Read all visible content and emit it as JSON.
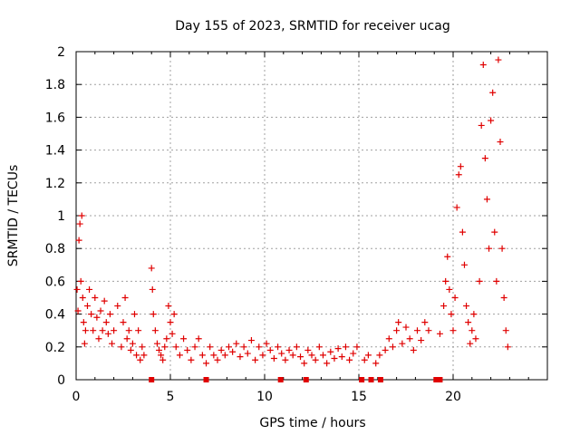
{
  "chart_data": {
    "type": "scatter",
    "title": "Day 155 of 2023, SRMTID for receiver ucag",
    "xlabel": "GPS time / hours",
    "ylabel": "SRMTID / TECUs",
    "xlim": [
      0,
      25
    ],
    "ylim": [
      0,
      2
    ],
    "xticks": [
      0,
      5,
      10,
      15,
      20
    ],
    "xtick_labels": [
      "0",
      "5",
      "10",
      "15",
      "20"
    ],
    "yticks": [
      0,
      0.2,
      0.4,
      0.6,
      0.8,
      1,
      1.2,
      1.4,
      1.6,
      1.8,
      2
    ],
    "ytick_labels": [
      "0",
      "0.2",
      "0.4",
      "0.6",
      "0.8",
      "1",
      "1.2",
      "1.4",
      "1.6",
      "1.8",
      "2"
    ],
    "grid": true,
    "marker": "plus",
    "color": "#e00000",
    "series": [
      {
        "name": "SRMTID",
        "points": [
          [
            0.05,
            0.55
          ],
          [
            0.1,
            0.42
          ],
          [
            0.15,
            0.85
          ],
          [
            0.2,
            0.95
          ],
          [
            0.25,
            0.6
          ],
          [
            0.3,
            1.0
          ],
          [
            0.35,
            0.5
          ],
          [
            0.4,
            0.35
          ],
          [
            0.45,
            0.22
          ],
          [
            0.5,
            0.3
          ],
          [
            0.6,
            0.45
          ],
          [
            0.7,
            0.55
          ],
          [
            0.8,
            0.4
          ],
          [
            0.9,
            0.3
          ],
          [
            1.0,
            0.5
          ],
          [
            1.1,
            0.38
          ],
          [
            1.2,
            0.25
          ],
          [
            1.3,
            0.42
          ],
          [
            1.4,
            0.3
          ],
          [
            1.5,
            0.48
          ],
          [
            1.6,
            0.35
          ],
          [
            1.7,
            0.28
          ],
          [
            1.8,
            0.4
          ],
          [
            1.9,
            0.22
          ],
          [
            2.0,
            0.3
          ],
          [
            2.2,
            0.45
          ],
          [
            2.4,
            0.2
          ],
          [
            2.5,
            0.35
          ],
          [
            2.6,
            0.5
          ],
          [
            2.7,
            0.25
          ],
          [
            2.8,
            0.3
          ],
          [
            2.9,
            0.18
          ],
          [
            3.0,
            0.22
          ],
          [
            3.1,
            0.4
          ],
          [
            3.2,
            0.15
          ],
          [
            3.3,
            0.3
          ],
          [
            3.4,
            0.12
          ],
          [
            3.5,
            0.2
          ],
          [
            3.6,
            0.15
          ],
          [
            4.0,
            0.68
          ],
          [
            4.05,
            0.55
          ],
          [
            4.1,
            0.4
          ],
          [
            4.2,
            0.3
          ],
          [
            4.3,
            0.22
          ],
          [
            4.4,
            0.18
          ],
          [
            4.5,
            0.15
          ],
          [
            4.6,
            0.12
          ],
          [
            4.7,
            0.2
          ],
          [
            4.8,
            0.25
          ],
          [
            4.9,
            0.45
          ],
          [
            5.0,
            0.35
          ],
          [
            5.1,
            0.28
          ],
          [
            5.2,
            0.4
          ],
          [
            5.3,
            0.2
          ],
          [
            5.5,
            0.15
          ],
          [
            5.7,
            0.25
          ],
          [
            5.9,
            0.18
          ],
          [
            6.1,
            0.12
          ],
          [
            6.3,
            0.2
          ],
          [
            6.5,
            0.25
          ],
          [
            6.7,
            0.15
          ],
          [
            6.9,
            0.1
          ],
          [
            7.1,
            0.2
          ],
          [
            7.3,
            0.15
          ],
          [
            7.5,
            0.12
          ],
          [
            7.7,
            0.18
          ],
          [
            7.9,
            0.15
          ],
          [
            8.1,
            0.2
          ],
          [
            8.3,
            0.17
          ],
          [
            8.5,
            0.22
          ],
          [
            8.7,
            0.14
          ],
          [
            8.9,
            0.2
          ],
          [
            9.1,
            0.16
          ],
          [
            9.3,
            0.24
          ],
          [
            9.5,
            0.12
          ],
          [
            9.7,
            0.2
          ],
          [
            9.9,
            0.15
          ],
          [
            10.1,
            0.22
          ],
          [
            10.3,
            0.18
          ],
          [
            10.5,
            0.13
          ],
          [
            10.7,
            0.2
          ],
          [
            10.9,
            0.16
          ],
          [
            11.1,
            0.12
          ],
          [
            11.3,
            0.18
          ],
          [
            11.5,
            0.15
          ],
          [
            11.7,
            0.2
          ],
          [
            11.9,
            0.14
          ],
          [
            12.1,
            0.1
          ],
          [
            12.3,
            0.18
          ],
          [
            12.5,
            0.15
          ],
          [
            12.7,
            0.12
          ],
          [
            12.9,
            0.2
          ],
          [
            13.1,
            0.15
          ],
          [
            13.3,
            0.1
          ],
          [
            13.5,
            0.17
          ],
          [
            13.7,
            0.13
          ],
          [
            13.9,
            0.19
          ],
          [
            14.1,
            0.14
          ],
          [
            14.3,
            0.2
          ],
          [
            14.5,
            0.12
          ],
          [
            14.7,
            0.16
          ],
          [
            14.9,
            0.2
          ],
          [
            15.3,
            0.12
          ],
          [
            15.5,
            0.15
          ],
          [
            15.9,
            0.1
          ],
          [
            16.1,
            0.15
          ],
          [
            16.4,
            0.18
          ],
          [
            16.6,
            0.25
          ],
          [
            16.8,
            0.2
          ],
          [
            17.0,
            0.3
          ],
          [
            17.1,
            0.35
          ],
          [
            17.3,
            0.22
          ],
          [
            17.5,
            0.32
          ],
          [
            17.7,
            0.25
          ],
          [
            17.9,
            0.18
          ],
          [
            18.1,
            0.3
          ],
          [
            18.3,
            0.24
          ],
          [
            18.5,
            0.35
          ],
          [
            18.7,
            0.3
          ],
          [
            19.3,
            0.28
          ],
          [
            19.5,
            0.45
          ],
          [
            19.6,
            0.6
          ],
          [
            19.7,
            0.75
          ],
          [
            19.8,
            0.55
          ],
          [
            19.9,
            0.4
          ],
          [
            20.0,
            0.3
          ],
          [
            20.1,
            0.5
          ],
          [
            20.2,
            1.05
          ],
          [
            20.3,
            1.25
          ],
          [
            20.4,
            1.3
          ],
          [
            20.5,
            0.9
          ],
          [
            20.6,
            0.7
          ],
          [
            20.7,
            0.45
          ],
          [
            20.8,
            0.35
          ],
          [
            20.9,
            0.22
          ],
          [
            21.0,
            0.3
          ],
          [
            21.1,
            0.4
          ],
          [
            21.2,
            0.25
          ],
          [
            21.4,
            0.6
          ],
          [
            21.5,
            1.55
          ],
          [
            21.6,
            1.92
          ],
          [
            21.7,
            1.35
          ],
          [
            21.8,
            1.1
          ],
          [
            21.9,
            0.8
          ],
          [
            22.0,
            1.58
          ],
          [
            22.1,
            1.75
          ],
          [
            22.2,
            0.9
          ],
          [
            22.3,
            0.6
          ],
          [
            22.4,
            1.95
          ],
          [
            22.5,
            1.45
          ],
          [
            22.6,
            0.8
          ],
          [
            22.7,
            0.5
          ],
          [
            22.8,
            0.3
          ],
          [
            22.9,
            0.2
          ]
        ]
      }
    ],
    "gap_markers_x": [
      4.0,
      6.9,
      10.85,
      12.2,
      15.15,
      15.65,
      16.15,
      19.1,
      19.3
    ]
  }
}
